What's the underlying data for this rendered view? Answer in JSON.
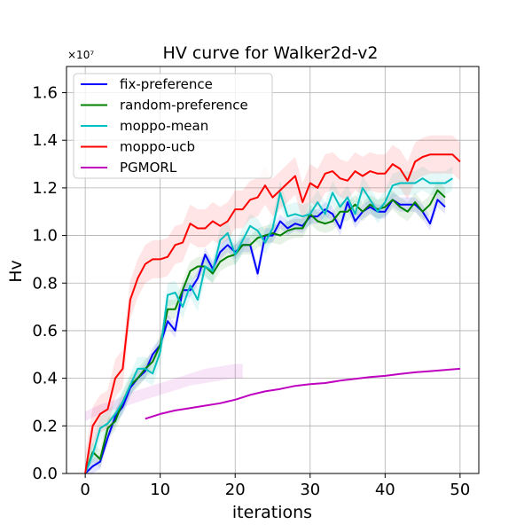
{
  "chart_data": {
    "type": "line",
    "title": "HV curve for Walker2d-v2",
    "xlabel": "iterations",
    "ylabel": "Hv",
    "y_offset_label": "×10⁷",
    "xlim": [
      -2.5,
      52.5
    ],
    "ylim": [
      0.0,
      1.71
    ],
    "x_ticks": [
      0,
      10,
      20,
      30,
      40,
      50
    ],
    "x_tick_labels": [
      "0",
      "10",
      "20",
      "30",
      "40",
      "50"
    ],
    "y_ticks": [
      0.0,
      0.2,
      0.4,
      0.6,
      0.8,
      1.0,
      1.2,
      1.4,
      1.6
    ],
    "y_tick_labels": [
      "0.0",
      "0.2",
      "0.4",
      "0.6",
      "0.8",
      "1.0",
      "1.2",
      "1.4",
      "1.6"
    ],
    "grid": true,
    "legend_position": "upper-left",
    "series": [
      {
        "name": "fix-preference",
        "color": "#0000ff",
        "x": [
          0,
          1,
          2,
          3,
          4,
          5,
          6,
          7,
          8,
          9,
          10,
          11,
          12,
          13,
          14,
          15,
          16,
          17,
          18,
          19,
          20,
          21,
          22,
          23,
          24,
          25,
          26,
          27,
          28,
          29,
          30,
          31,
          32,
          33,
          34,
          35,
          36,
          37,
          38,
          39,
          40,
          41,
          42,
          43,
          44,
          45,
          46,
          47,
          48
        ],
        "y": [
          0.0,
          0.03,
          0.05,
          0.15,
          0.24,
          0.28,
          0.36,
          0.4,
          0.43,
          0.5,
          0.54,
          0.64,
          0.6,
          0.77,
          0.77,
          0.82,
          0.92,
          0.86,
          0.93,
          0.96,
          0.93,
          0.96,
          0.96,
          0.84,
          1.0,
          1.0,
          1.06,
          1.03,
          1.05,
          1.04,
          1.08,
          1.08,
          1.11,
          1.09,
          1.03,
          1.14,
          1.06,
          1.1,
          1.12,
          1.1,
          1.1,
          1.15,
          1.13,
          1.13,
          1.13,
          1.1,
          1.05,
          1.15,
          1.12
        ],
        "band": 0.03
      },
      {
        "name": "random-preference",
        "color": "#008000",
        "x": [
          0,
          1,
          2,
          3,
          4,
          5,
          6,
          7,
          8,
          9,
          10,
          11,
          12,
          13,
          14,
          15,
          16,
          17,
          18,
          19,
          20,
          21,
          22,
          23,
          24,
          25,
          26,
          27,
          28,
          29,
          30,
          31,
          32,
          33,
          34,
          35,
          36,
          37,
          38,
          39,
          40,
          41,
          42,
          43,
          44,
          45,
          46,
          47,
          48
        ],
        "y": [
          0.0,
          0.09,
          0.06,
          0.19,
          0.22,
          0.3,
          0.37,
          0.4,
          0.44,
          0.47,
          0.54,
          0.69,
          0.69,
          0.77,
          0.85,
          0.87,
          0.87,
          0.84,
          0.89,
          0.91,
          0.92,
          0.96,
          0.96,
          0.99,
          1.0,
          1.01,
          1.0,
          1.02,
          1.03,
          1.03,
          1.09,
          1.06,
          1.05,
          1.06,
          1.1,
          1.1,
          1.13,
          1.1,
          1.13,
          1.11,
          1.12,
          1.15,
          1.12,
          1.1,
          1.14,
          1.1,
          1.13,
          1.19,
          1.16
        ],
        "band": 0.04
      },
      {
        "name": "moppo-mean",
        "color": "#00bfbf",
        "x": [
          0,
          1,
          2,
          3,
          4,
          5,
          6,
          7,
          8,
          9,
          10,
          11,
          12,
          13,
          14,
          15,
          16,
          17,
          18,
          19,
          20,
          21,
          22,
          23,
          24,
          25,
          26,
          27,
          28,
          29,
          30,
          31,
          32,
          33,
          34,
          35,
          36,
          37,
          38,
          39,
          40,
          41,
          42,
          43,
          44,
          45,
          46,
          47,
          48,
          49
        ],
        "y": [
          0.0,
          0.08,
          0.19,
          0.21,
          0.25,
          0.3,
          0.37,
          0.44,
          0.44,
          0.42,
          0.51,
          0.75,
          0.76,
          0.7,
          0.79,
          0.73,
          0.87,
          0.85,
          0.98,
          1.01,
          0.92,
          0.98,
          1.04,
          1.02,
          0.97,
          1.03,
          1.18,
          1.08,
          1.09,
          1.08,
          1.09,
          1.14,
          1.09,
          1.18,
          1.12,
          1.16,
          1.09,
          1.2,
          1.15,
          1.1,
          1.14,
          1.21,
          1.22,
          1.22,
          1.22,
          1.24,
          1.22,
          1.22,
          1.22,
          1.24
        ],
        "band": 0.05
      },
      {
        "name": "moppo-ucb",
        "color": "#ff0000",
        "x": [
          0,
          1,
          2,
          3,
          4,
          5,
          6,
          7,
          8,
          9,
          10,
          11,
          12,
          13,
          14,
          15,
          16,
          17,
          18,
          19,
          20,
          21,
          22,
          23,
          24,
          25,
          26,
          27,
          28,
          29,
          30,
          31,
          32,
          33,
          34,
          35,
          36,
          37,
          38,
          39,
          40,
          41,
          42,
          43,
          44,
          45,
          46,
          47,
          48,
          49,
          50
        ],
        "y": [
          0.0,
          0.2,
          0.25,
          0.27,
          0.4,
          0.44,
          0.73,
          0.82,
          0.88,
          0.9,
          0.9,
          0.91,
          0.96,
          0.97,
          1.05,
          1.03,
          1.03,
          1.06,
          1.04,
          1.06,
          1.11,
          1.11,
          1.15,
          1.16,
          1.21,
          1.16,
          1.19,
          1.22,
          1.25,
          1.14,
          1.22,
          1.2,
          1.26,
          1.27,
          1.24,
          1.23,
          1.27,
          1.25,
          1.27,
          1.26,
          1.26,
          1.3,
          1.28,
          1.23,
          1.31,
          1.33,
          1.34,
          1.34,
          1.34,
          1.34,
          1.31
        ],
        "band": 0.08
      },
      {
        "name": "PGMORL",
        "color": "#bf00bf",
        "x": [
          8,
          10,
          12,
          14,
          16,
          18,
          20,
          22,
          24,
          26,
          28,
          30,
          32,
          34,
          36,
          38,
          40,
          42,
          44,
          46,
          48,
          50
        ],
        "y": [
          0.23,
          0.25,
          0.265,
          0.275,
          0.285,
          0.295,
          0.31,
          0.33,
          0.345,
          0.355,
          0.368,
          0.375,
          0.38,
          0.39,
          0.398,
          0.405,
          0.41,
          0.418,
          0.425,
          0.43,
          0.435,
          0.44
        ],
        "band_points": {
          "x": [
            0,
            2,
            4,
            6,
            8,
            10,
            12,
            14,
            16,
            18,
            20,
            21
          ],
          "lower": [
            0.22,
            0.25,
            0.27,
            0.29,
            0.31,
            0.33,
            0.35,
            0.37,
            0.38,
            0.39,
            0.4,
            0.4
          ],
          "upper": [
            0.26,
            0.29,
            0.31,
            0.34,
            0.36,
            0.38,
            0.4,
            0.42,
            0.44,
            0.45,
            0.46,
            0.46
          ]
        }
      }
    ]
  }
}
